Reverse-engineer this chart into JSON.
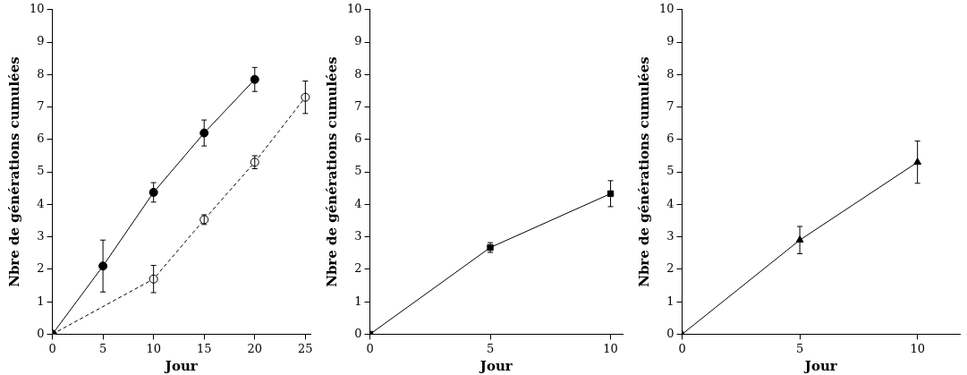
{
  "chart_data": [
    {
      "type": "line",
      "xlabel": "Jour",
      "ylabel": "Nbre de générations cumulées",
      "xlim": [
        0,
        25.5
      ],
      "xticks": [
        0,
        5,
        10,
        15,
        20,
        25
      ],
      "ylim": [
        0,
        10
      ],
      "yticks": [
        0,
        1,
        2,
        3,
        4,
        5,
        6,
        7,
        8,
        9,
        10
      ],
      "grid": false,
      "legend": false,
      "series": [
        {
          "color": "#000000",
          "marker": "circle",
          "line_style": "solid",
          "x": [
            0,
            5,
            10,
            15,
            20
          ],
          "values": [
            0,
            2.1,
            4.37,
            6.2,
            7.85
          ],
          "errors": [
            null,
            0.8,
            0.3,
            0.4,
            0.37
          ]
        },
        {
          "color": "#000000",
          "marker": "circle",
          "line_style": "dashed",
          "x": [
            0,
            10,
            15,
            20,
            25
          ],
          "values": [
            0,
            1.7,
            3.53,
            5.3,
            7.3
          ],
          "errors": [
            null,
            0.42,
            0.15,
            0.2,
            0.5
          ]
        }
      ]
    },
    {
      "type": "line",
      "xlabel": "Jour",
      "ylabel": "Nbre de générations cumulées",
      "xlim": [
        0,
        10.5
      ],
      "xticks": [
        0,
        5,
        10
      ],
      "ylim": [
        0,
        10
      ],
      "yticks": [
        0,
        1,
        2,
        3,
        4,
        5,
        6,
        7,
        8,
        9,
        10
      ],
      "grid": false,
      "legend": false,
      "series": [
        {
          "color": "#000000",
          "marker": "square",
          "line_style": "solid",
          "x": [
            0,
            5,
            10
          ],
          "values": [
            0,
            2.67,
            4.33
          ],
          "errors": [
            null,
            0.15,
            0.4
          ]
        }
      ]
    },
    {
      "type": "line",
      "xlabel": "Jour",
      "ylabel": "Nbre de générations cumulées",
      "xlim": [
        0,
        11.8
      ],
      "xticks": [
        0,
        5,
        10
      ],
      "ylim": [
        0,
        10
      ],
      "yticks": [
        0,
        1,
        2,
        3,
        4,
        5,
        6,
        7,
        8,
        9,
        10
      ],
      "grid": false,
      "legend": false,
      "series": [
        {
          "color": "#000000",
          "marker": "triangle",
          "line_style": "solid",
          "x": [
            0,
            5,
            10
          ],
          "values": [
            0,
            2.9,
            5.3
          ],
          "errors": [
            null,
            0.42,
            0.65
          ]
        }
      ]
    }
  ]
}
